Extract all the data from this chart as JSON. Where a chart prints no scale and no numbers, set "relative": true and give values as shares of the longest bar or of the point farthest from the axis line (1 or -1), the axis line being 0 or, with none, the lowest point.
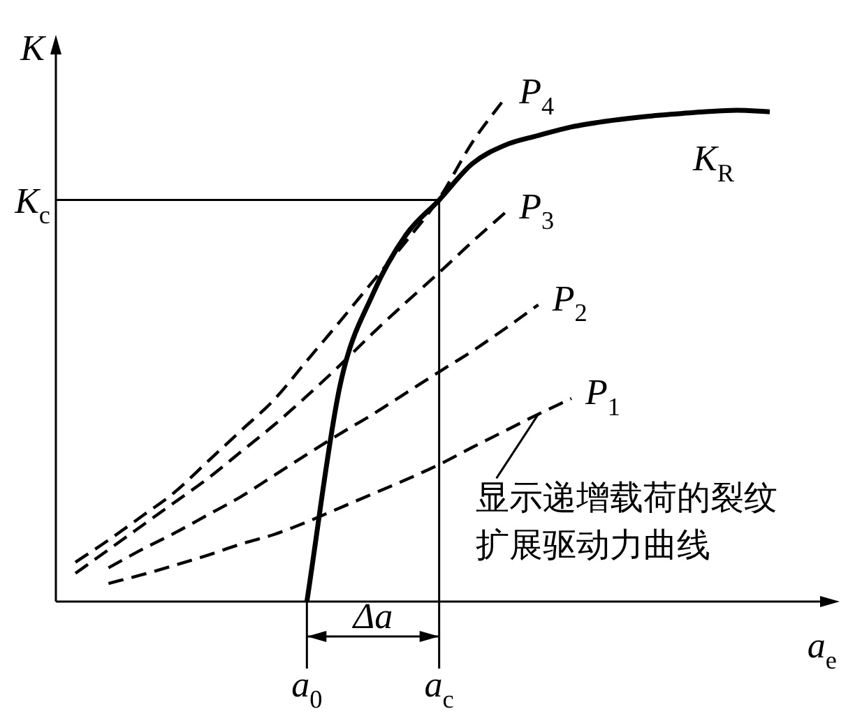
{
  "chart_data": {
    "type": "line",
    "relative": true,
    "xlabel": "a$_{e}$",
    "ylabel": "K",
    "legend": false,
    "marker": "none",
    "categories": [
      null,
      null,
      null,
      null,
      null,
      null,
      null,
      "a$_{0}$",
      null,
      null,
      null,
      "a$_{c}$",
      null,
      null,
      null,
      null,
      null,
      null,
      null,
      null,
      null,
      null
    ],
    "series": [
      {
        "name": "K$_{R}$",
        "color": "#000000",
        "line_style": "solid",
        "values": [
          null,
          null,
          null,
          null,
          null,
          null,
          null,
          0,
          0.428,
          0.611,
          0.728,
          0.797,
          0.869,
          0.906,
          0.925,
          0.942,
          0.953,
          0.961,
          0.967,
          0.972,
          0.975,
          0.972
        ]
      },
      {
        "name": "P$_{1}$",
        "color": "#000000",
        "line_style": "dashed",
        "values": [
          null,
          0.036,
          0.053,
          0.072,
          0.092,
          0.114,
          0.133,
          0.158,
          0.186,
          0.214,
          0.242,
          0.272,
          0.306,
          0.339,
          0.372,
          0.403,
          null,
          null,
          null,
          null,
          null,
          null
        ]
      },
      {
        "name": "P$_{2}$",
        "color": "#000000",
        "line_style": "dashed",
        "values": [
          null,
          0.067,
          0.103,
          0.136,
          0.172,
          0.208,
          0.25,
          0.292,
          0.333,
          0.372,
          0.414,
          0.456,
          0.497,
          0.542,
          0.589,
          null,
          null,
          null,
          null,
          null,
          null,
          null
        ]
      },
      {
        "name": "P$_{3}$",
        "color": "#000000",
        "line_style": "dashed",
        "values": [
          0.056,
          0.103,
          0.15,
          0.197,
          0.244,
          0.297,
          0.35,
          0.408,
          0.469,
          0.533,
          0.594,
          0.653,
          0.714,
          0.772,
          null,
          null,
          null,
          null,
          null,
          null,
          null,
          null
        ]
      },
      {
        "name": "P$_{4}$",
        "color": "#000000",
        "line_style": "dashed",
        "values": [
          0.078,
          0.122,
          0.169,
          0.217,
          0.278,
          0.339,
          0.4,
          0.478,
          0.556,
          0.636,
          0.715,
          0.8,
          0.911,
          1.0,
          null,
          null,
          null,
          null,
          null,
          null,
          null,
          null
        ]
      }
    ],
    "ref_lines": [
      {
        "axis": "y",
        "value": 0.797,
        "label": "K$_{c}$",
        "color": "#000000"
      },
      {
        "axis": "x",
        "value": "a$_{c}$",
        "color": "#000000"
      }
    ],
    "annotations": [
      "显示递增载荷的裂纹扩展驱动力曲线",
      "Δa"
    ]
  }
}
